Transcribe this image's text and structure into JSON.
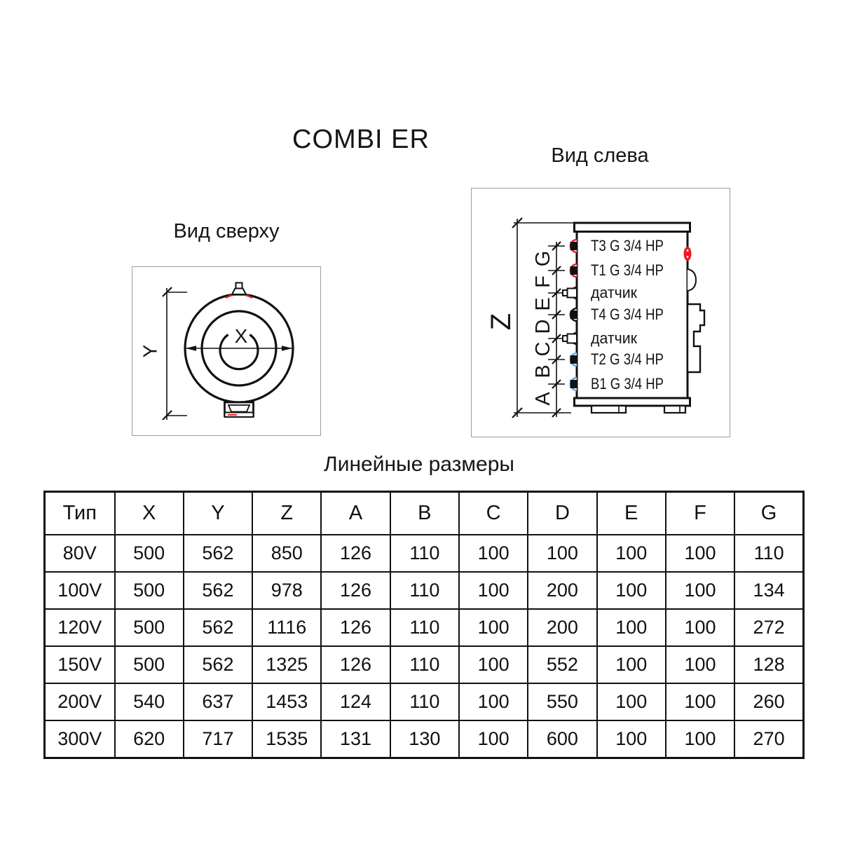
{
  "title": "COMBI ER",
  "views": {
    "left": {
      "label": "Вид слева",
      "z_label": "Z",
      "dim_letters": [
        "A",
        "B",
        "C",
        "D",
        "E",
        "F",
        "G"
      ],
      "ports": [
        {
          "label": "T3 G 3/4 HP",
          "color": "#ed1c24"
        },
        {
          "label": "T1 G 3/4 HP",
          "color": "#ed1c24"
        },
        {
          "label": "датчик",
          "color": "#111111"
        },
        {
          "label": "T4 G 3/4 HP",
          "color": "#111111"
        },
        {
          "label": "датчик",
          "color": "#111111"
        },
        {
          "label": "T2 G 3/4 HP",
          "color": "#5aabf2"
        },
        {
          "label": "B1 G 3/4 HP",
          "color": "#5aabf2"
        }
      ]
    },
    "top": {
      "label": "Вид сверху",
      "x_label": "X",
      "y_label": "Y"
    }
  },
  "table": {
    "title": "Линейные размеры",
    "columns": [
      "Тип",
      "X",
      "Y",
      "Z",
      "A",
      "B",
      "C",
      "D",
      "E",
      "F",
      "G"
    ],
    "rows": [
      [
        "80V",
        "500",
        "562",
        "850",
        "126",
        "110",
        "100",
        "100",
        "100",
        "100",
        "110"
      ],
      [
        "100V",
        "500",
        "562",
        "978",
        "126",
        "110",
        "100",
        "200",
        "100",
        "100",
        "134"
      ],
      [
        "120V",
        "500",
        "562",
        "1116",
        "126",
        "110",
        "100",
        "200",
        "100",
        "100",
        "272"
      ],
      [
        "150V",
        "500",
        "562",
        "1325",
        "126",
        "110",
        "100",
        "552",
        "100",
        "100",
        "128"
      ],
      [
        "200V",
        "540",
        "637",
        "1453",
        "124",
        "110",
        "100",
        "550",
        "100",
        "100",
        "260"
      ],
      [
        "300V",
        "620",
        "717",
        "1535",
        "131",
        "130",
        "100",
        "600",
        "100",
        "100",
        "270"
      ]
    ]
  },
  "colors": {
    "red": "#ed1c24",
    "blue": "#5aabf2",
    "line": "#111111"
  }
}
